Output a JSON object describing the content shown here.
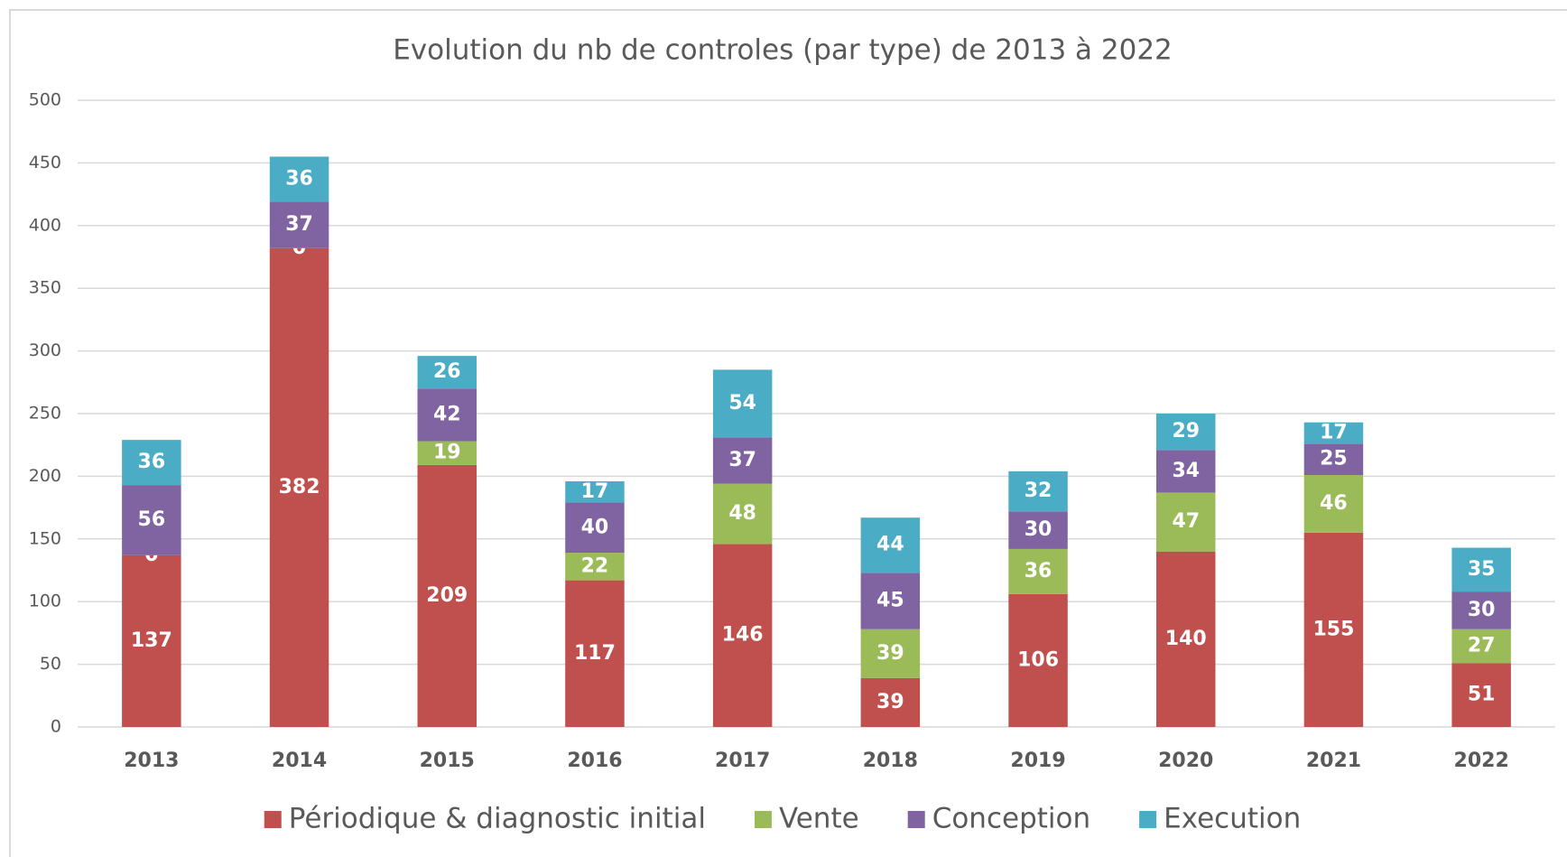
{
  "chart_data": {
    "type": "stacked_bar",
    "title": "Evolution du nb de controles (par type) de 2013 à 2022",
    "categories": [
      "2013",
      "2014",
      "2015",
      "2016",
      "2017",
      "2018",
      "2019",
      "2020",
      "2021",
      "2022"
    ],
    "series": [
      {
        "name": "Périodique & diagnostic initial",
        "color": "#c0504d",
        "values": [
          137,
          382,
          209,
          117,
          146,
          39,
          106,
          140,
          155,
          51
        ]
      },
      {
        "name": "Vente",
        "color": "#9bbb59",
        "values": [
          0,
          0,
          19,
          22,
          48,
          39,
          36,
          47,
          46,
          27
        ]
      },
      {
        "name": "Conception",
        "color": "#8064a2",
        "values": [
          56,
          37,
          42,
          40,
          37,
          45,
          30,
          34,
          25,
          30
        ]
      },
      {
        "name": "Execution",
        "color": "#4bacc6",
        "values": [
          36,
          36,
          26,
          17,
          54,
          44,
          32,
          29,
          17,
          35
        ]
      }
    ],
    "ylim": [
      0,
      500
    ],
    "yticks": [
      0,
      50,
      100,
      150,
      200,
      250,
      300,
      350,
      400,
      450,
      500
    ],
    "grid": true,
    "legend": "bottom"
  }
}
